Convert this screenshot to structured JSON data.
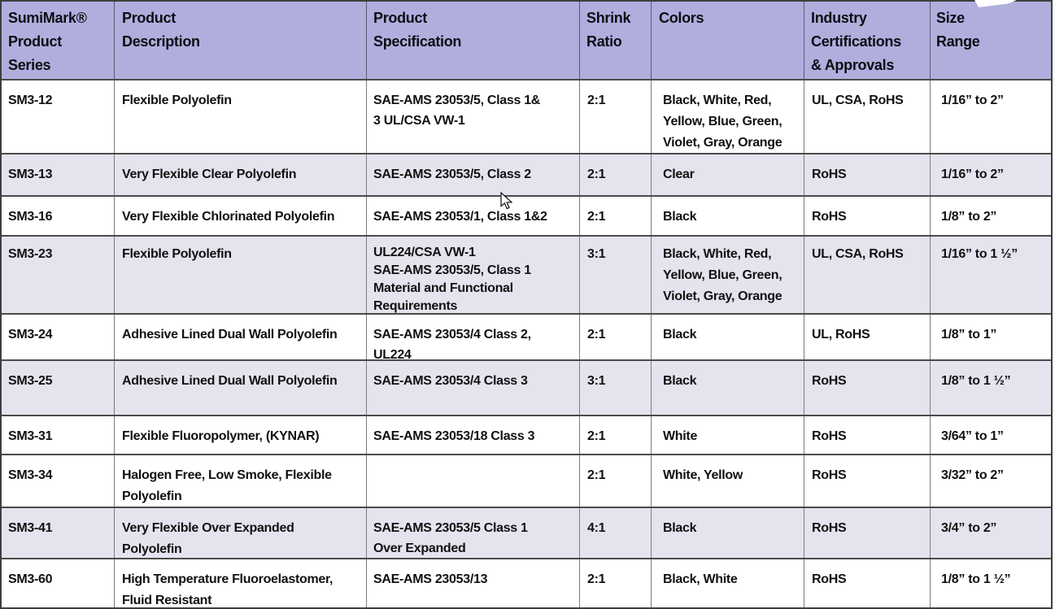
{
  "theme": {
    "header_bg": "#b0aedd",
    "shaded_row_bg": "#e4e4ef",
    "grid_line": "#4b4b4b",
    "text": "#111111"
  },
  "header": {
    "columns": [
      "SumiMark®\nProduct\nSeries",
      "Product\nDescription",
      "Product\nSpecification",
      "Shrink\nRatio",
      "Colors",
      "Industry\nCertifications\n& Approvals",
      "Size\nRange"
    ]
  },
  "rows": [
    {
      "series": "SM3-12",
      "description": "Flexible Polyolefin",
      "specification": "SAE-AMS 23053/5, Class 1&\n3 UL/CSA VW-1",
      "shrink_ratio": "2:1",
      "colors": "Black, White, Red,\nYellow, Blue, Green,\nViolet, Gray, Orange",
      "certifications": "UL, CSA, RoHS",
      "size_range": "1/16” to 2”",
      "shaded": false
    },
    {
      "series": "SM3-13",
      "description": "Very Flexible Clear Polyolefin",
      "specification": " SAE-AMS 23053/5, Class 2",
      "shrink_ratio": "2:1",
      "colors": "Clear",
      "certifications": "RoHS",
      "size_range": "1/16” to 2”",
      "shaded": true
    },
    {
      "series": "SM3-16",
      "description": "Very Flexible Chlorinated Polyolefin",
      "specification": "SAE-AMS 23053/1, Class 1&2",
      "shrink_ratio": "2:1",
      "colors": "Black",
      "certifications": "RoHS",
      "size_range": "1/8” to 2”",
      "shaded": false
    },
    {
      "series": "SM3-23",
      "description": "Flexible Polyolefin",
      "specification": "UL224/CSA VW-1\nSAE-AMS 23053/5, Class 1\nMaterial and Functional\nRequirements",
      "shrink_ratio": "3:1",
      "colors": "Black, White, Red,\nYellow, Blue, Green,\nViolet, Gray, Orange",
      "certifications": "UL, CSA, RoHS",
      "size_range": "1/16” to 1 ½”",
      "shaded": true
    },
    {
      "series": "SM3-24",
      "description": "Adhesive Lined Dual Wall Polyolefin",
      "specification": "SAE-AMS 23053/4 Class 2,\nUL224",
      "shrink_ratio": "2:1",
      "colors": "Black",
      "certifications": "UL, RoHS",
      "size_range": "1/8” to 1”",
      "shaded": false
    },
    {
      "series": "SM3-25",
      "description": "Adhesive Lined Dual Wall Polyolefin",
      "specification": "SAE-AMS 23053/4 Class 3",
      "shrink_ratio": "3:1",
      "colors": "Black",
      "certifications": "RoHS",
      "size_range": "1/8” to 1 ½”",
      "shaded": true
    },
    {
      "series": "SM3-31",
      "description": "Flexible Fluoropolymer, (KYNAR)",
      "specification": "SAE-AMS 23053/18 Class 3",
      "shrink_ratio": "2:1",
      "colors": "White",
      "certifications": "RoHS",
      "size_range": "3/64” to 1”",
      "shaded": false
    },
    {
      "series": "SM3-34",
      "description": "Halogen Free, Low Smoke, Flexible\nPolyolefin",
      "specification": "",
      "shrink_ratio": "2:1",
      "colors": "White, Yellow",
      "certifications": "RoHS",
      "size_range": "3/32” to 2”",
      "shaded": false
    },
    {
      "series": "SM3-41",
      "description": "Very Flexible Over Expanded\nPolyolefin",
      "specification": "SAE-AMS 23053/5 Class 1\nOver Expanded",
      "shrink_ratio": "4:1",
      "colors": "Black",
      "certifications": "RoHS",
      "size_range": "3/4” to 2”",
      "shaded": true
    },
    {
      "series": "SM3-60",
      "description": "High Temperature Fluoroelastomer,\nFluid Resistant",
      "specification": "SAE-AMS 23053/13",
      "shrink_ratio": "2:1",
      "colors": "Black, White",
      "certifications": "RoHS",
      "size_range": "1/8” to 1 ½”",
      "shaded": false
    }
  ]
}
